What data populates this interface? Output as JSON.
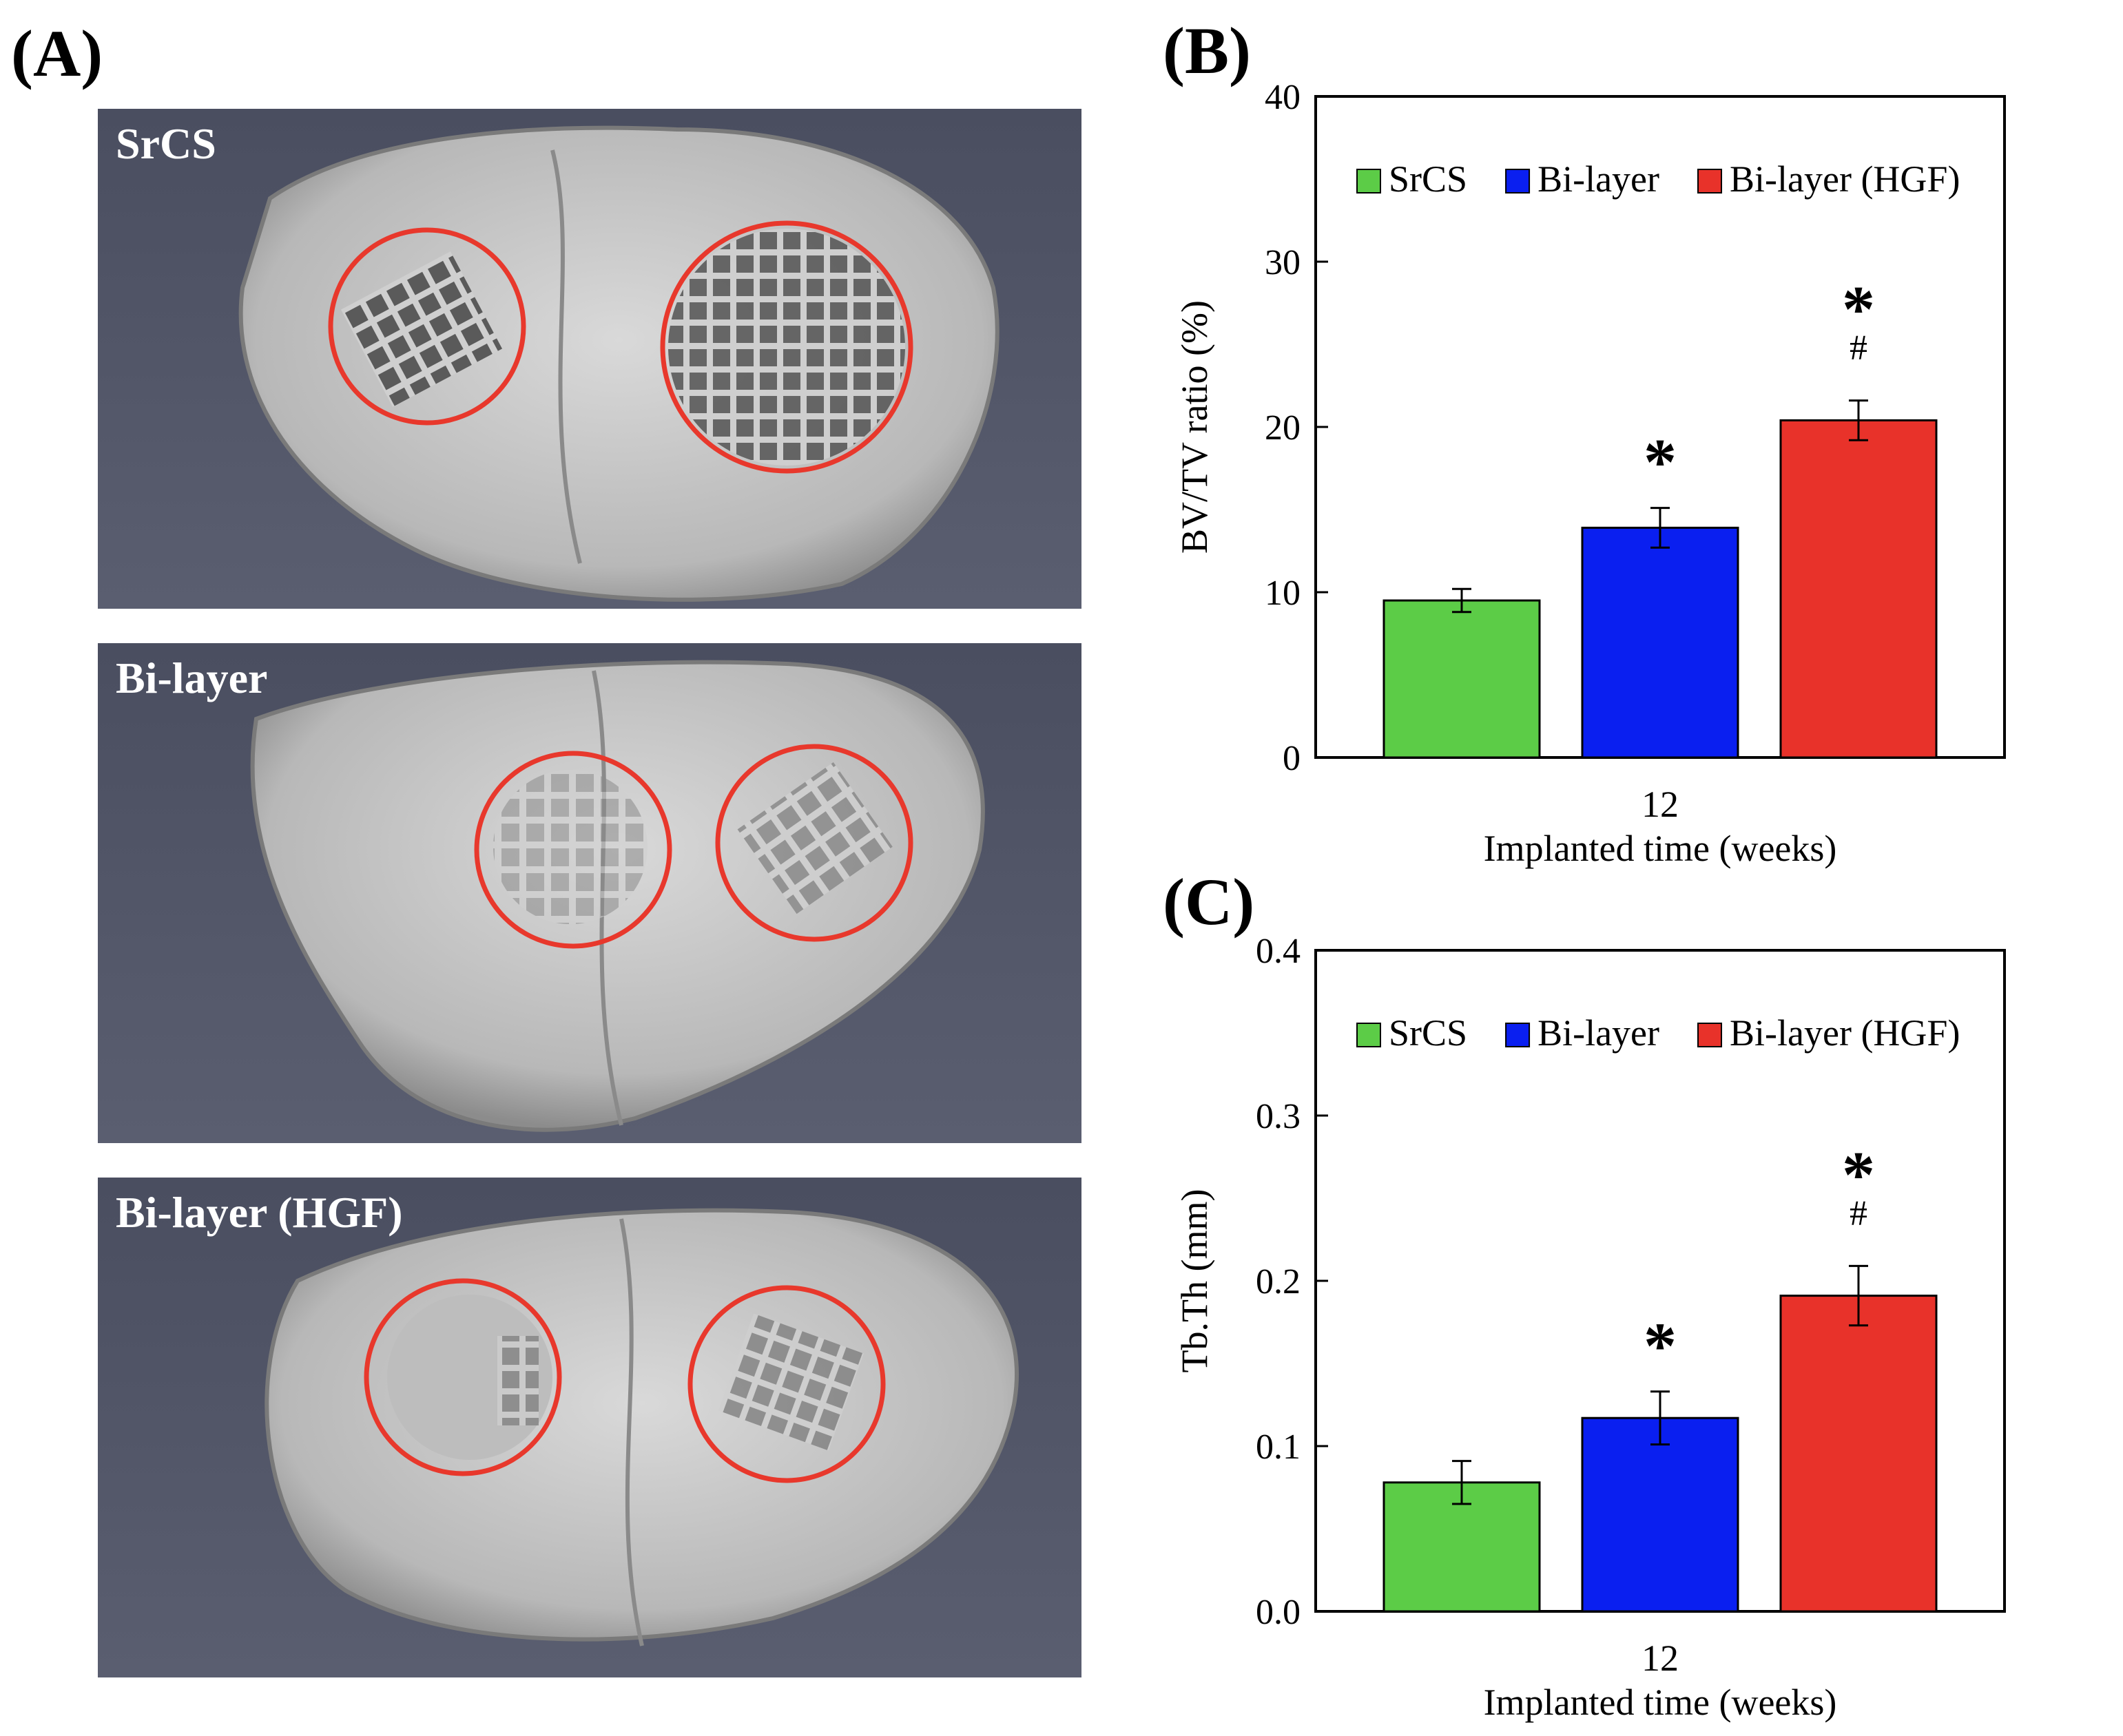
{
  "panels": {
    "a": {
      "label": "(A)",
      "images": [
        {
          "tag": "SrCS"
        },
        {
          "tag": "Bi-layer"
        },
        {
          "tag": "Bi-layer (HGF)"
        }
      ]
    },
    "b": {
      "label": "(B)"
    },
    "c": {
      "label": "(C)"
    }
  },
  "colors": {
    "srcs": "#5ccc47",
    "bilayer": "#0a1ff0",
    "hgf": "#e8322a",
    "ct_background": "#4d5163",
    "circle": "#e8382c"
  },
  "chart_data": [
    {
      "type": "bar",
      "categories": [
        "12"
      ],
      "series": [
        {
          "name": "SrCS",
          "color": "#5ccc47",
          "values": [
            9.5
          ],
          "error": [
            0.7
          ],
          "marks": []
        },
        {
          "name": "Bi-layer",
          "color": "#0a1ff0",
          "values": [
            13.9
          ],
          "error": [
            1.2
          ],
          "marks": [
            "*"
          ]
        },
        {
          "name": "Bi-layer (HGF)",
          "color": "#e8322a",
          "values": [
            20.4
          ],
          "error": [
            1.2
          ],
          "marks": [
            "*",
            "#"
          ]
        }
      ],
      "ylabel": "BV/TV ratio (%)",
      "xlabel": "Implanted time (weeks)",
      "ylim": [
        0,
        40
      ],
      "yticks": [
        "0",
        "10",
        "20",
        "30",
        "40"
      ],
      "legend": "top",
      "grid": false
    },
    {
      "type": "bar",
      "categories": [
        "12"
      ],
      "series": [
        {
          "name": "SrCS",
          "color": "#5ccc47",
          "values": [
            0.078
          ],
          "error": [
            0.013
          ],
          "marks": []
        },
        {
          "name": "Bi-layer",
          "color": "#0a1ff0",
          "values": [
            0.117
          ],
          "error": [
            0.016
          ],
          "marks": [
            "*"
          ]
        },
        {
          "name": "Bi-layer (HGF)",
          "color": "#e8322a",
          "values": [
            0.191
          ],
          "error": [
            0.018
          ],
          "marks": [
            "*",
            "#"
          ]
        }
      ],
      "ylabel": "Tb.Th (mm)",
      "xlabel": "Implanted time (weeks)",
      "ylim": [
        0,
        0.4
      ],
      "yticks": [
        "0.0",
        "0.1",
        "0.2",
        "0.3",
        "0.4"
      ],
      "legend": "top",
      "grid": false
    }
  ]
}
